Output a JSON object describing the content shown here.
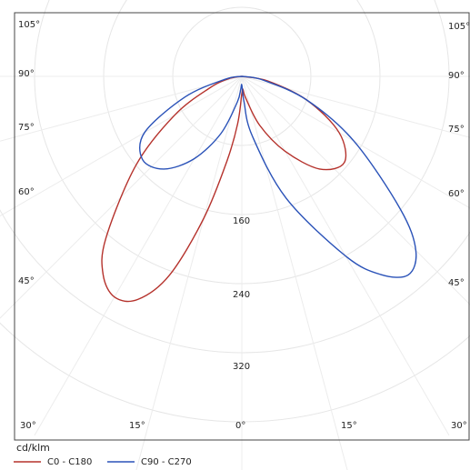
{
  "chart_data": {
    "type": "polar",
    "unit_label": "cd/klm",
    "radial_ticks": [
      "160",
      "240",
      "320"
    ],
    "angle_ticks_left": [
      "105°",
      "90°",
      "75°",
      "60°",
      "45°"
    ],
    "angle_ticks_right": [
      "105°",
      "90°",
      "75°",
      "60°",
      "45°"
    ],
    "angle_ticks_bottom": [
      "30°",
      "15°",
      "0°",
      "15°",
      "30°"
    ],
    "grid": true,
    "series": [
      {
        "name": "C0 - C180",
        "color": "#b5322c",
        "angle_deg": [
          -90,
          -80,
          -70,
          -60,
          -50,
          -40,
          -35,
          -30,
          -25,
          -20,
          -15,
          -10,
          -5,
          0,
          5,
          10,
          20,
          30,
          40,
          50,
          60,
          70,
          80,
          90
        ],
        "intensity": [
          0,
          15,
          40,
          90,
          160,
          245,
          280,
          295,
          285,
          245,
          170,
          100,
          55,
          20,
          15,
          25,
          60,
          100,
          140,
          155,
          130,
          80,
          30,
          0
        ]
      },
      {
        "name": "C90 - C270",
        "color": "#2a52b8",
        "angle_deg": [
          -90,
          -80,
          -70,
          -60,
          -50,
          -40,
          -30,
          -20,
          -10,
          -5,
          0,
          5,
          10,
          20,
          30,
          35,
          40,
          45,
          50,
          60,
          70,
          80,
          90
        ],
        "intensity": [
          0,
          20,
          70,
          130,
          150,
          140,
          110,
          70,
          30,
          15,
          10,
          30,
          70,
          150,
          240,
          280,
          300,
          285,
          240,
          150,
          80,
          25,
          0
        ]
      }
    ]
  }
}
